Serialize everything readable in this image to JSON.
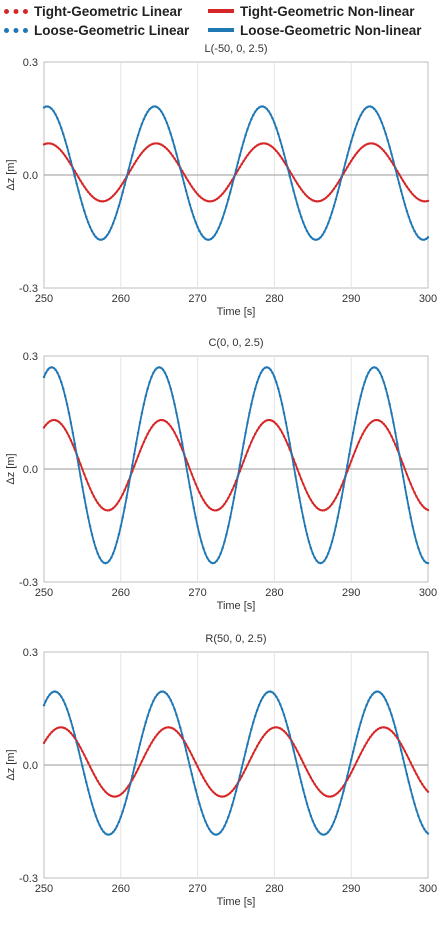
{
  "legend": {
    "items": [
      {
        "label": "Tight-Geometric Linear",
        "color": "#d62728",
        "style": "dotted"
      },
      {
        "label": "Tight-Geometric Non-linear",
        "color": "#d62728",
        "style": "solid"
      },
      {
        "label": "Loose-Geometric Linear",
        "color": "#1f77b4",
        "style": "dotted"
      },
      {
        "label": "Loose-Geometric Non-linear",
        "color": "#1f77b4",
        "style": "solid"
      }
    ]
  },
  "chart_data": [
    {
      "type": "line",
      "title": "L(-50, 0, 2.5)",
      "xlabel": "Time [s]",
      "ylabel": "Δz [m]",
      "xlim": [
        250,
        300
      ],
      "ylim": [
        -0.3,
        0.3
      ],
      "xticks": [
        "250",
        "260",
        "270",
        "280",
        "290",
        "300"
      ],
      "yticks": [
        "0.3",
        "0.0",
        "-0.3"
      ],
      "grid": "vertical",
      "series": [
        {
          "name": "Tight-Geometric Linear",
          "color": "#d62728",
          "style": "dotted",
          "wave": {
            "period": 14,
            "amp": 0.077,
            "offset": 0.007,
            "peak_time": 250.6
          }
        },
        {
          "name": "Tight-Geometric Non-linear",
          "color": "#d62728",
          "style": "solid",
          "wave": {
            "period": 14,
            "amp": 0.077,
            "offset": 0.007,
            "peak_time": 250.6
          }
        },
        {
          "name": "Loose-Geometric Linear",
          "color": "#1f77b4",
          "style": "dotted",
          "wave": {
            "period": 14,
            "amp": 0.177,
            "offset": 0.005,
            "peak_time": 250.4
          }
        },
        {
          "name": "Loose-Geometric Non-linear",
          "color": "#1f77b4",
          "style": "solid",
          "wave": {
            "period": 14,
            "amp": 0.177,
            "offset": 0.005,
            "peak_time": 250.4
          }
        }
      ]
    },
    {
      "type": "line",
      "title": "C(0, 0, 2.5)",
      "xlabel": "Time [s]",
      "ylabel": "Δz [m]",
      "xlim": [
        250,
        300
      ],
      "ylim": [
        -0.3,
        0.3
      ],
      "xticks": [
        "250",
        "260",
        "270",
        "280",
        "290",
        "300"
      ],
      "yticks": [
        "0.3",
        "0.0",
        "-0.3"
      ],
      "grid": "vertical",
      "series": [
        {
          "name": "Tight-Geometric Linear",
          "color": "#d62728",
          "style": "dotted",
          "wave": {
            "period": 14,
            "amp": 0.12,
            "offset": 0.01,
            "peak_time": 251.3
          }
        },
        {
          "name": "Tight-Geometric Non-linear",
          "color": "#d62728",
          "style": "solid",
          "wave": {
            "period": 14,
            "amp": 0.12,
            "offset": 0.01,
            "peak_time": 251.3
          }
        },
        {
          "name": "Loose-Geometric Linear",
          "color": "#1f77b4",
          "style": "dotted",
          "wave": {
            "period": 14,
            "amp": 0.26,
            "offset": 0.01,
            "peak_time": 251.0
          }
        },
        {
          "name": "Loose-Geometric Non-linear",
          "color": "#1f77b4",
          "style": "solid",
          "wave": {
            "period": 14,
            "amp": 0.26,
            "offset": 0.01,
            "peak_time": 251.0
          }
        }
      ]
    },
    {
      "type": "line",
      "title": "R(50, 0, 2.5)",
      "xlabel": "Time [s]",
      "ylabel": "Δz [m]",
      "xlim": [
        250,
        300
      ],
      "ylim": [
        -0.3,
        0.3
      ],
      "xticks": [
        "250",
        "260",
        "270",
        "280",
        "290",
        "300"
      ],
      "yticks": [
        "0.3",
        "0.0",
        "-0.3"
      ],
      "grid": "vertical",
      "series": [
        {
          "name": "Tight-Geometric Linear",
          "color": "#d62728",
          "style": "dotted",
          "wave": {
            "period": 14,
            "amp": 0.092,
            "offset": 0.008,
            "peak_time": 252.2
          }
        },
        {
          "name": "Tight-Geometric Non-linear",
          "color": "#d62728",
          "style": "solid",
          "wave": {
            "period": 14,
            "amp": 0.092,
            "offset": 0.008,
            "peak_time": 252.2
          }
        },
        {
          "name": "Loose-Geometric Linear",
          "color": "#1f77b4",
          "style": "dotted",
          "wave": {
            "period": 14,
            "amp": 0.19,
            "offset": 0.005,
            "peak_time": 251.4
          }
        },
        {
          "name": "Loose-Geometric Non-linear",
          "color": "#1f77b4",
          "style": "solid",
          "wave": {
            "period": 14,
            "amp": 0.19,
            "offset": 0.005,
            "peak_time": 251.4
          }
        }
      ]
    }
  ]
}
